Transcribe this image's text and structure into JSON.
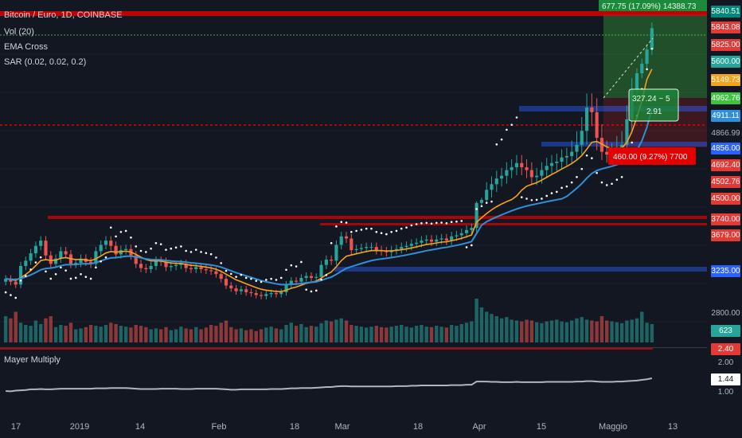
{
  "header": {
    "symbol": "Bitcoin / Euro, 1D, COINBASE",
    "studies": [
      "Vol (20)",
      "EMA Cross",
      "SAR (0.02, 0.02, 0.2)"
    ]
  },
  "lower_pane": {
    "title": "Mayer Multiply"
  },
  "colors": {
    "background": "#131722",
    "up": "#26a69a",
    "down": "#ef5350",
    "ema_fast": "#f7a21b",
    "ema_slow": "#2f8fd8",
    "sar": "#ffffff",
    "resistance": "#e50000",
    "support": "#2962ff"
  },
  "price_axis": {
    "badges": [
      {
        "text": "5840.51",
        "color": "#00897b"
      },
      {
        "text": "5843.08",
        "color": "#e53935"
      },
      {
        "text": "5825.00",
        "color": "#e53935"
      },
      {
        "text": "5600.00",
        "color": "#26a69a"
      },
      {
        "text": "5149.73",
        "color": "#f7a21b"
      },
      {
        "text": "4962.76",
        "color": "#3fc43f"
      },
      {
        "text": "4911.11",
        "color": "#2f8fd8"
      },
      {
        "text": "4866.99",
        "color": "#131722"
      },
      {
        "text": "4856.00",
        "color": "#2962ff"
      },
      {
        "text": "4692.40",
        "color": "#e53935"
      },
      {
        "text": "4502.76",
        "color": "#e53935"
      },
      {
        "text": "4500.00",
        "color": "#e53935"
      },
      {
        "text": "3740.00",
        "color": "#e53935"
      },
      {
        "text": "3679.00",
        "color": "#e53935"
      },
      {
        "text": "3235.00",
        "color": "#2962ff"
      },
      {
        "text": "2800.00",
        "color": "#131722"
      },
      {
        "text": "623",
        "color": "#26a69a"
      }
    ],
    "lower_badges": [
      {
        "text": "2.40",
        "color": "#e53935"
      },
      {
        "text": "2.00",
        "color": "#131722"
      },
      {
        "text": "1.44",
        "color": "#ffffff"
      },
      {
        "text": "1.00",
        "color": "#131722"
      }
    ]
  },
  "annotations": {
    "long_box_label": "677.75 (17.09%) 14388.73",
    "short_box_label": "460.00 (9.27%) 7700",
    "center_box_label": "327.24 ~ 5",
    "center_box_sub": "2.91"
  },
  "chart_data": {
    "type": "candlestick",
    "x_tick_labels": [
      "17",
      "2019",
      "14",
      "Feb",
      "18",
      "Mar",
      "18",
      "Apr",
      "15",
      "Maggio",
      "13"
    ],
    "price_levels_marked": [
      5840.51,
      5843.08,
      5825.0,
      5600.0,
      5149.73,
      4962.76,
      4911.11,
      4866.99,
      4856.0,
      4692.4,
      4502.76,
      4500.0,
      3740.0,
      3679.0,
      3235.0,
      2800.0
    ],
    "volume_last": 623,
    "mayer_multiple_levels": [
      2.4,
      2.0,
      1.44,
      1.0
    ],
    "close_series_approx": [
      3150,
      3120,
      3090,
      3280,
      3330,
      3400,
      3470,
      3520,
      3380,
      3300,
      3350,
      3420,
      3390,
      3300,
      3310,
      3350,
      3320,
      3300,
      3420,
      3480,
      3520,
      3470,
      3390,
      3430,
      3440,
      3380,
      3300,
      3260,
      3250,
      3280,
      3330,
      3320,
      3270,
      3280,
      3290,
      3300,
      3260,
      3250,
      3270,
      3250,
      3240,
      3230,
      3200,
      3150,
      3080,
      3050,
      3020,
      3040,
      3010,
      3000,
      2980,
      2970,
      2990,
      3000,
      2990,
      3010,
      3090,
      3130,
      3120,
      3160,
      3180,
      3160,
      3170,
      3290,
      3340,
      3330,
      3480,
      3560,
      3540,
      3430,
      3440,
      3450,
      3460,
      3460,
      3430,
      3420,
      3410,
      3430,
      3440,
      3460,
      3470,
      3490,
      3500,
      3520,
      3530,
      3510,
      3530,
      3540,
      3520,
      3560,
      3570,
      3590,
      3620,
      3640,
      4350,
      4450,
      4560,
      4600,
      4640,
      4660,
      4700,
      4720,
      4750,
      4720,
      4700,
      4650,
      4660,
      4700,
      4730,
      4750,
      4760,
      4790,
      4800,
      4830,
      4870,
      4930,
      5030,
      5010,
      4900,
      4830,
      4810,
      4820,
      4850,
      4870,
      4980,
      5110,
      5230,
      5350,
      5530,
      5800
    ],
    "volume_series_approx": [
      60,
      55,
      70,
      45,
      40,
      38,
      50,
      42,
      55,
      60,
      35,
      40,
      38,
      45,
      30,
      32,
      35,
      40,
      38,
      36,
      40,
      45,
      42,
      38,
      36,
      34,
      40,
      38,
      35,
      30,
      32,
      30,
      35,
      28,
      30,
      36,
      32,
      30,
      35,
      30,
      34,
      40,
      38,
      45,
      50,
      35,
      30,
      32,
      28,
      30,
      26,
      30,
      34,
      36,
      32,
      30,
      40,
      45,
      38,
      42,
      35,
      38,
      36,
      44,
      50,
      48,
      52,
      55,
      50,
      40,
      38,
      36,
      34,
      36,
      38,
      35,
      34,
      36,
      38,
      40,
      36,
      34,
      38,
      40,
      36,
      35,
      38,
      36,
      34,
      40,
      38,
      42,
      45,
      48,
      100,
      80,
      70,
      65,
      60,
      55,
      58,
      52,
      50,
      48,
      52,
      50,
      46,
      44,
      48,
      50,
      52,
      48,
      46,
      50,
      55,
      58,
      52,
      50,
      48,
      60,
      50,
      48,
      46,
      44,
      50,
      52,
      55,
      70,
      45,
      42
    ],
    "mayer_series_approx": [
      1.05,
      1.04,
      1.06,
      1.07,
      1.08,
      1.1,
      1.1,
      1.11,
      1.1,
      1.1,
      1.11,
      1.12,
      1.12,
      1.12,
      1.12,
      1.12,
      1.12,
      1.12,
      1.13,
      1.13,
      1.13,
      1.14,
      1.14,
      1.14,
      1.14,
      1.13,
      1.12,
      1.11,
      1.11,
      1.11,
      1.11,
      1.12,
      1.12,
      1.12,
      1.12,
      1.11,
      1.11,
      1.11,
      1.12,
      1.12,
      1.12,
      1.12,
      1.12,
      1.11,
      1.1,
      1.09,
      1.09,
      1.1,
      1.1,
      1.1,
      1.1,
      1.1,
      1.1,
      1.11,
      1.11,
      1.11,
      1.12,
      1.13,
      1.13,
      1.14,
      1.14,
      1.14,
      1.15,
      1.16,
      1.17,
      1.17,
      1.19,
      1.2,
      1.2,
      1.19,
      1.19,
      1.19,
      1.19,
      1.19,
      1.19,
      1.19,
      1.19,
      1.19,
      1.2,
      1.2,
      1.2,
      1.21,
      1.21,
      1.22,
      1.22,
      1.22,
      1.22,
      1.22,
      1.22,
      1.23,
      1.23,
      1.23,
      1.24,
      1.24,
      1.34,
      1.34,
      1.34,
      1.33,
      1.33,
      1.32,
      1.32,
      1.32,
      1.33,
      1.32,
      1.32,
      1.32,
      1.32,
      1.32,
      1.33,
      1.33,
      1.33,
      1.33,
      1.33,
      1.33,
      1.34,
      1.34,
      1.35,
      1.35,
      1.34,
      1.33,
      1.33,
      1.33,
      1.34,
      1.34,
      1.35,
      1.36,
      1.37,
      1.39,
      1.41,
      1.44
    ]
  }
}
